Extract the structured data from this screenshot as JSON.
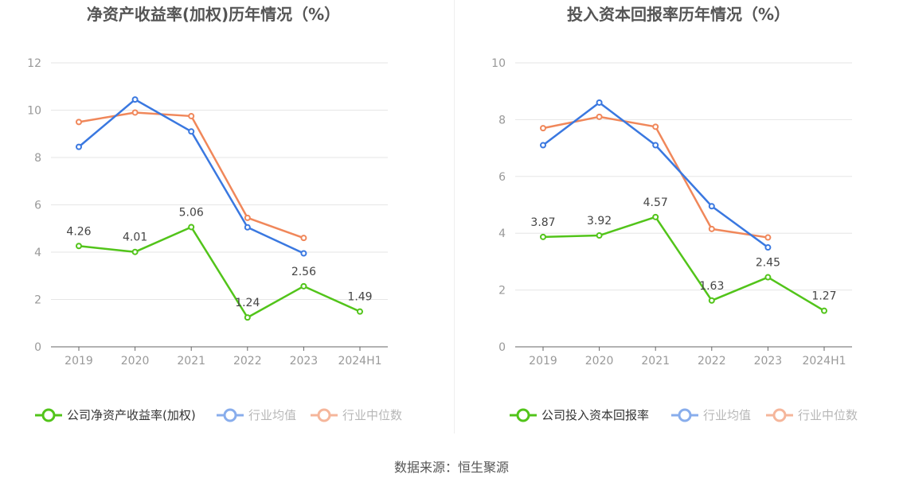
{
  "colors": {
    "company": "#52c41a",
    "industry_avg": "#3a78e0",
    "industry_median": "#f0875a",
    "grid": "#e6e6e6",
    "axis": "#666666",
    "tick_text": "#999999",
    "title_text": "#555555"
  },
  "source_text": "数据来源：恒生聚源",
  "chart_data": [
    {
      "type": "line",
      "title": "净资产收益率(加权)历年情况（%）",
      "categories": [
        "2019",
        "2020",
        "2021",
        "2022",
        "2023",
        "2024H1"
      ],
      "ylim": [
        0,
        12
      ],
      "yticks": [
        "0",
        "2",
        "4",
        "6",
        "8",
        "10",
        "12"
      ],
      "grid": true,
      "legend_position": "bottom",
      "series": [
        {
          "name": "公司净资产收益率(加权)",
          "values": [
            4.26,
            4.01,
            5.06,
            1.24,
            2.56,
            1.49
          ],
          "labels": [
            "4.26",
            "4.01",
            "5.06",
            "1.24",
            "2.56",
            "1.49"
          ]
        },
        {
          "name": "行业均值",
          "values": [
            8.45,
            10.45,
            9.1,
            5.05,
            3.95,
            null
          ]
        },
        {
          "name": "行业中位数",
          "values": [
            9.5,
            9.9,
            9.75,
            5.45,
            4.6,
            null
          ]
        }
      ]
    },
    {
      "type": "line",
      "title": "投入资本回报率历年情况（%）",
      "categories": [
        "2019",
        "2020",
        "2021",
        "2022",
        "2023",
        "2024H1"
      ],
      "ylim": [
        0,
        10
      ],
      "yticks": [
        "0",
        "2",
        "4",
        "6",
        "8",
        "10"
      ],
      "grid": true,
      "legend_position": "bottom",
      "series": [
        {
          "name": "公司投入资本回报率",
          "values": [
            3.87,
            3.92,
            4.57,
            1.63,
            2.45,
            1.27
          ],
          "labels": [
            "3.87",
            "3.92",
            "4.57",
            "1.63",
            "2.45",
            "1.27"
          ]
        },
        {
          "name": "行业均值",
          "values": [
            7.1,
            8.6,
            7.1,
            4.95,
            3.5,
            null
          ]
        },
        {
          "name": "行业中位数",
          "values": [
            7.7,
            8.1,
            7.75,
            4.15,
            3.85,
            null
          ]
        }
      ]
    }
  ]
}
